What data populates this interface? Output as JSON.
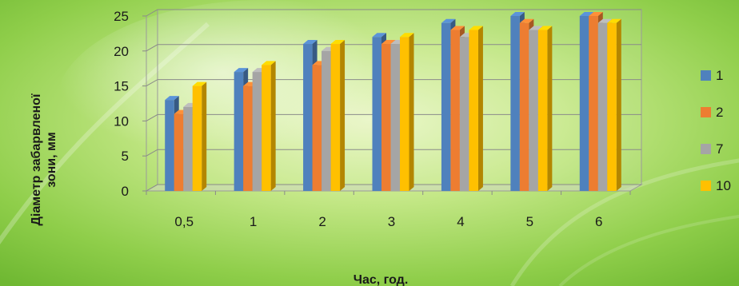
{
  "chart_data": {
    "type": "bar",
    "categories": [
      "0,5",
      "1",
      "2",
      "3",
      "4",
      "5",
      "6"
    ],
    "series": [
      {
        "name": "1",
        "color": "#4F81BD",
        "values": [
          13,
          17,
          21,
          22,
          24,
          25,
          25
        ]
      },
      {
        "name": "2",
        "color": "#ED7D31",
        "values": [
          11,
          15,
          18,
          21,
          23,
          24,
          25
        ]
      },
      {
        "name": "7",
        "color": "#A5A5A5",
        "values": [
          12,
          17,
          20,
          21,
          22,
          23,
          24
        ]
      },
      {
        "name": "10",
        "color": "#FFC000",
        "values": [
          15,
          18,
          21,
          22,
          23,
          23,
          24
        ]
      }
    ],
    "y_ticks": [
      "0",
      "5",
      "10",
      "15",
      "20",
      "25"
    ],
    "ylim": [
      0,
      25
    ],
    "xlabel": "Час, год.",
    "ylabel_line1": "Діаметр забарвленої",
    "ylabel_line2": "зони, мм",
    "grid": true,
    "legend_position": "right",
    "three_d": true
  }
}
